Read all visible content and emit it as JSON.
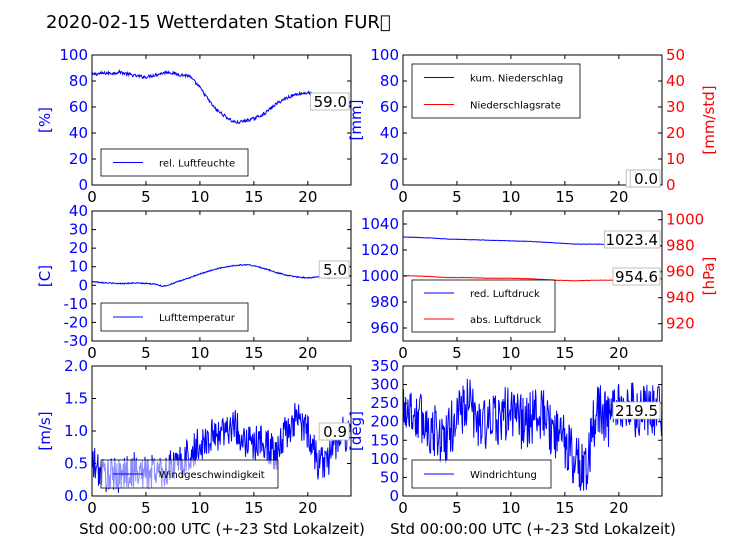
{
  "title": "2020-02-15 Wetterdaten Station FUR\u0000",
  "colors": {
    "left_axis": "#0000ff",
    "right_axis": "#ff0000",
    "s_blue": "#0000ff",
    "s_red": "#ff0000"
  },
  "xlabel": "Std 00:00:00 UTC (+-23 Std Lokalzeit)",
  "chart_data": [
    {
      "id": "humidity",
      "type": "line",
      "ylabel": "[%]",
      "xlim": [
        0,
        24
      ],
      "ylim": [
        0,
        100
      ],
      "xticks": [
        0,
        5,
        10,
        15,
        20
      ],
      "yticks": [
        0,
        20,
        40,
        60,
        80,
        100
      ],
      "annotation": "59.0",
      "legend_position": "bottom-left",
      "series": [
        {
          "name": "rel. Luftfeuchte",
          "color": "#0000ff",
          "noise": 1.2,
          "x": [
            0,
            1,
            2,
            2.5,
            3,
            4,
            5,
            6,
            7,
            7.5,
            8,
            9,
            10,
            11,
            11.5,
            12,
            12.5,
            13,
            13.5,
            14,
            14.5,
            15,
            16,
            17,
            18,
            19,
            20,
            21,
            22,
            23,
            24
          ],
          "y": [
            85,
            86,
            86,
            87,
            86,
            84,
            83,
            85,
            87,
            86,
            85,
            84,
            75,
            63,
            58,
            55,
            52,
            49,
            48,
            49,
            50,
            51,
            55,
            62,
            67,
            70,
            71,
            68,
            64,
            63,
            60
          ]
        }
      ]
    },
    {
      "id": "precip",
      "type": "line",
      "ylabel": "[mm]",
      "ylabel_right": "[mm/std]",
      "xlim": [
        0,
        24
      ],
      "ylim": [
        0,
        100
      ],
      "ylim_right": [
        0,
        50
      ],
      "xticks": [
        0,
        5,
        10,
        15,
        20
      ],
      "yticks": [
        0,
        20,
        40,
        60,
        80,
        100
      ],
      "yticks_right": [
        0,
        10,
        20,
        30,
        40,
        50
      ],
      "annotation": "0.0",
      "annotation_right": "0.0",
      "legend_position": "top-left",
      "series": [
        {
          "name": "kum. Niederschlag",
          "color": "#0000ff",
          "noise": 0,
          "x": [
            0,
            24
          ],
          "y": [
            0,
            0
          ]
        },
        {
          "name": "Niederschlagsrate",
          "color": "#ff0000",
          "noise": 0,
          "axis": "right",
          "x": [
            0,
            24
          ],
          "y": [
            0,
            0
          ]
        }
      ]
    },
    {
      "id": "temperature",
      "type": "line",
      "ylabel": "[C]",
      "xlim": [
        0,
        24
      ],
      "ylim": [
        -30,
        40
      ],
      "xticks": [
        0,
        5,
        10,
        15,
        20
      ],
      "yticks": [
        -30,
        -20,
        -10,
        0,
        10,
        20,
        30,
        40
      ],
      "annotation": "5.0",
      "legend_position": "bottom-left",
      "series": [
        {
          "name": "Lufttemperatur",
          "color": "#0000ff",
          "noise": 0.3,
          "x": [
            0,
            1,
            2,
            3,
            4,
            5,
            6,
            6.5,
            7,
            8,
            9,
            10,
            11,
            12,
            13,
            14,
            14.5,
            15,
            16,
            17,
            18,
            19,
            20,
            21,
            22,
            23,
            24
          ],
          "y": [
            2,
            1.5,
            1,
            1,
            1.2,
            1,
            0.5,
            -0.5,
            0,
            2,
            4,
            6,
            8,
            9.5,
            10.5,
            11,
            11,
            10.5,
            9,
            7,
            5.5,
            4.5,
            4,
            4.5,
            4,
            4.5,
            5
          ]
        }
      ]
    },
    {
      "id": "pressure",
      "type": "line",
      "ylabel_right": "[hPa]",
      "xlim": [
        0,
        24
      ],
      "ylim": [
        950,
        1050
      ],
      "ylim_right": [
        906.7,
        1006.7
      ],
      "xticks": [
        0,
        5,
        10,
        15,
        20
      ],
      "yticks": [
        960,
        980,
        1000,
        1020,
        1040
      ],
      "yticks_right": [
        920,
        940,
        960,
        980,
        1000
      ],
      "annotation": "1023.4",
      "annotation_right": "954.6",
      "legend_position": "bottom-left",
      "series": [
        {
          "name": "red. Luftdruck",
          "color": "#0000ff",
          "noise": 0.15,
          "x": [
            0,
            2,
            4,
            6,
            8,
            10,
            12,
            14,
            16,
            18,
            20,
            22,
            24
          ],
          "y": [
            1030,
            1029.5,
            1028.5,
            1028,
            1027.5,
            1027,
            1026.5,
            1025.5,
            1024.5,
            1024.5,
            1024,
            1024,
            1023.4
          ]
        },
        {
          "name": "abs. Luftdruck",
          "color": "#ff0000",
          "noise": 0.15,
          "axis": "right",
          "x": [
            0,
            2,
            4,
            6,
            8,
            10,
            12,
            14,
            16,
            18,
            20,
            22,
            24
          ],
          "y": [
            957,
            956.5,
            955.5,
            955.5,
            955,
            955,
            954.5,
            953.5,
            953,
            953.5,
            953.5,
            954,
            954.6
          ]
        }
      ]
    },
    {
      "id": "windspeed",
      "type": "line",
      "ylabel": "[m/s]",
      "xlim": [
        0,
        24
      ],
      "ylim": [
        0,
        2.0
      ],
      "xticks": [
        0,
        5,
        10,
        15,
        20
      ],
      "yticks": [
        0.0,
        0.5,
        1.0,
        1.5,
        2.0
      ],
      "annotation": "0.9",
      "legend_position": "bottom-left",
      "series": [
        {
          "name": "Windgeschwindigkeit",
          "color": "#0000ff",
          "noise": 0.28,
          "x": [
            0,
            1,
            2,
            3,
            4,
            5,
            6,
            7,
            8,
            9,
            10,
            11,
            12,
            13,
            14,
            15,
            16,
            17,
            18,
            19,
            20,
            21,
            22,
            23,
            24
          ],
          "y": [
            0.5,
            0.35,
            0.3,
            0.35,
            0.4,
            0.35,
            0.4,
            0.4,
            0.5,
            0.6,
            0.8,
            0.9,
            1.0,
            1.1,
            0.9,
            0.8,
            0.85,
            0.6,
            1.0,
            1.2,
            1.0,
            0.5,
            0.6,
            1.0,
            0.9
          ]
        }
      ]
    },
    {
      "id": "winddir",
      "type": "line",
      "ylabel": "[deg]",
      "xlim": [
        0,
        24
      ],
      "ylim": [
        0,
        350
      ],
      "xticks": [
        0,
        5,
        10,
        15,
        20
      ],
      "yticks": [
        0,
        50,
        100,
        150,
        200,
        250,
        300,
        350
      ],
      "annotation": "219.5",
      "legend_position": "bottom-left",
      "series": [
        {
          "name": "Windrichtung",
          "color": "#0000ff",
          "noise": 75,
          "x": [
            0,
            1,
            2,
            3,
            4,
            5,
            6,
            7,
            8,
            9,
            10,
            11,
            12,
            13,
            14,
            15,
            16,
            17,
            18,
            19,
            20,
            21,
            22,
            23,
            24
          ],
          "y": [
            250,
            220,
            200,
            170,
            150,
            220,
            250,
            200,
            190,
            210,
            230,
            200,
            210,
            220,
            160,
            150,
            90,
            70,
            250,
            200,
            230,
            240,
            220,
            230,
            220
          ]
        }
      ]
    }
  ]
}
